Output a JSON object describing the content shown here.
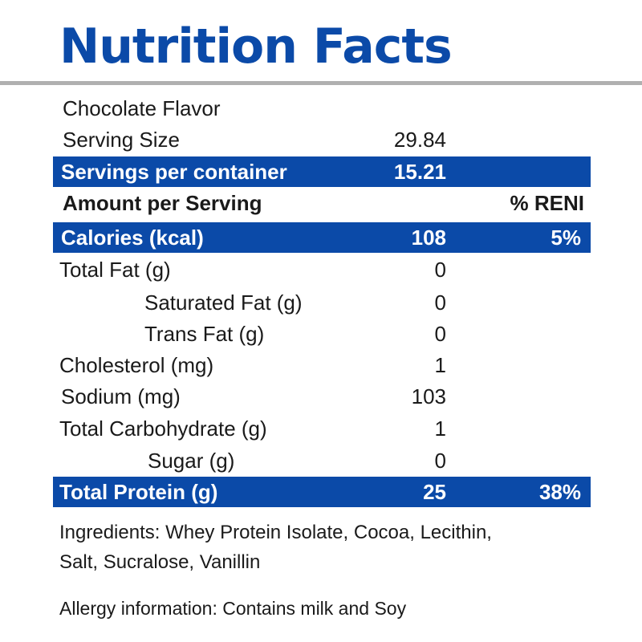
{
  "header": {
    "title": "Nutrition Facts"
  },
  "label": {
    "flavor": "Chocolate Flavor",
    "serving_size": {
      "label": "Serving Size",
      "value": "29.84"
    },
    "servings_per_container": {
      "label": "Servings per container",
      "value": "15.21"
    },
    "amount_header": {
      "label": "Amount per Serving",
      "pct_label": "% RENI"
    },
    "calories": {
      "label": "Calories (kcal)",
      "value": "108",
      "pct": "5%"
    },
    "nutrients": [
      {
        "label": "Total Fat (g)",
        "value": "0"
      },
      {
        "label": "Saturated Fat (g)",
        "value": "0"
      },
      {
        "label": "Trans Fat (g)",
        "value": "0"
      },
      {
        "label": "Cholesterol (mg)",
        "value": "1"
      },
      {
        "label": "Sodium (mg)",
        "value": "103"
      },
      {
        "label": "Total Carbohydrate (g)",
        "value": "1"
      },
      {
        "label": "Sugar (g)",
        "value": "0"
      }
    ],
    "protein": {
      "label": "Total Protein (g)",
      "value": "25",
      "pct": "38%"
    }
  },
  "footer": {
    "ingredients_line1": "Ingredients: Whey Protein Isolate, Cocoa, Lecithin,",
    "ingredients_line2": "Salt, Sucralose, Vanillin",
    "allergy": "Allergy information: Contains milk and Soy"
  },
  "colors": {
    "accent": "#0b4aa8",
    "rule": "#b0b0b0",
    "text": "#1a1a1a"
  }
}
